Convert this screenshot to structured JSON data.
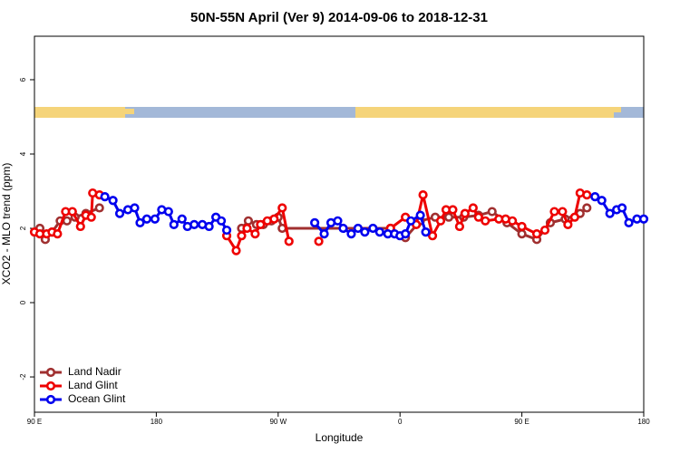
{
  "chart_data": {
    "type": "line",
    "title": "50N-55N April (Ver 9)   2014-09-06 to 2018-12-31",
    "x_label": "Longitude",
    "y_label": "XCO2 - MLO trend (ppm)",
    "xlim": [
      90,
      540
    ],
    "ylim": [
      -2.95,
      7.17
    ],
    "xticks": [
      {
        "value": 90,
        "label": "90 E"
      },
      180,
      {
        "value": 270,
        "label": "90 W"
      },
      {
        "value": 360,
        "label": "0"
      },
      {
        "value": 450,
        "label": "90 E"
      },
      {
        "value": 540,
        "label": "180"
      }
    ],
    "yticks": [
      -2,
      0,
      2,
      4,
      6
    ],
    "legend": "lower left",
    "series": [
      {
        "name": "Land Nadir",
        "color": "#a03030",
        "x": [
          94,
          98,
          103,
          109,
          114,
          120,
          128,
          138,
          238,
          243,
          248,
          254,
          259,
          265,
          270,
          273,
          353,
          364,
          375,
          386,
          396,
          407,
          418,
          428,
          439,
          450,
          461,
          471,
          482,
          493,
          498
        ],
        "values": [
          2.0,
          1.7,
          1.9,
          2.2,
          2.2,
          2.3,
          2.4,
          2.55,
          null,
          2.0,
          2.2,
          2.1,
          2.1,
          2.2,
          2.3,
          2.0,
          2.0,
          1.75,
          2.2,
          2.3,
          2.3,
          2.3,
          2.35,
          2.45,
          2.15,
          1.85,
          1.7,
          2.15,
          2.25,
          2.4,
          2.55
        ]
      },
      {
        "name": "Land Glint",
        "color": "#ee0000",
        "x": [
          90,
          94,
          99,
          103,
          107,
          113,
          118,
          124,
          128,
          132,
          133,
          138,
          185,
          232,
          239,
          243,
          247,
          253,
          257,
          262,
          267,
          273,
          278,
          289,
          300,
          326,
          353,
          364,
          372,
          377,
          384,
          390,
          394,
          399,
          404,
          408,
          414,
          418,
          423,
          433,
          438,
          443,
          450,
          461,
          467,
          474,
          480,
          484,
          489,
          493,
          498
        ],
        "values": [
          1.9,
          1.85,
          1.85,
          1.9,
          1.85,
          2.45,
          2.45,
          2.05,
          2.35,
          2.3,
          2.95,
          2.9,
          null,
          1.8,
          1.4,
          1.8,
          2.0,
          1.85,
          2.1,
          2.2,
          2.25,
          2.55,
          1.65,
          null,
          1.65,
          null,
          2.0,
          2.3,
          2.1,
          2.9,
          1.8,
          2.2,
          2.5,
          2.5,
          2.05,
          2.4,
          2.55,
          2.3,
          2.2,
          2.25,
          2.25,
          2.2,
          2.05,
          1.85,
          1.95,
          2.45,
          2.45,
          2.1,
          2.3,
          2.95,
          2.9
        ]
      },
      {
        "name": "Ocean Glint",
        "color": "#0000ee",
        "x": [
          142,
          148,
          153,
          159,
          164,
          168,
          173,
          179,
          184,
          189,
          193,
          199,
          203,
          208,
          214,
          219,
          224,
          228,
          232,
          265,
          297,
          304,
          309,
          314,
          318,
          324,
          329,
          334,
          340,
          345,
          351,
          356,
          360,
          364,
          368,
          375,
          379,
          440,
          504,
          509,
          515,
          520,
          524,
          529,
          535,
          540
        ],
        "values": [
          2.85,
          2.75,
          2.4,
          2.5,
          2.55,
          2.15,
          2.25,
          2.25,
          2.5,
          2.45,
          2.1,
          2.25,
          2.05,
          2.1,
          2.1,
          2.05,
          2.3,
          2.2,
          1.95,
          null,
          2.15,
          1.85,
          2.15,
          2.2,
          2.0,
          1.85,
          2.0,
          1.9,
          2.0,
          1.9,
          1.85,
          1.85,
          1.8,
          1.85,
          2.2,
          2.35,
          1.9,
          null,
          2.85,
          2.75,
          2.4,
          2.5,
          2.55,
          2.15,
          2.25,
          2.25
        ]
      }
    ]
  }
}
